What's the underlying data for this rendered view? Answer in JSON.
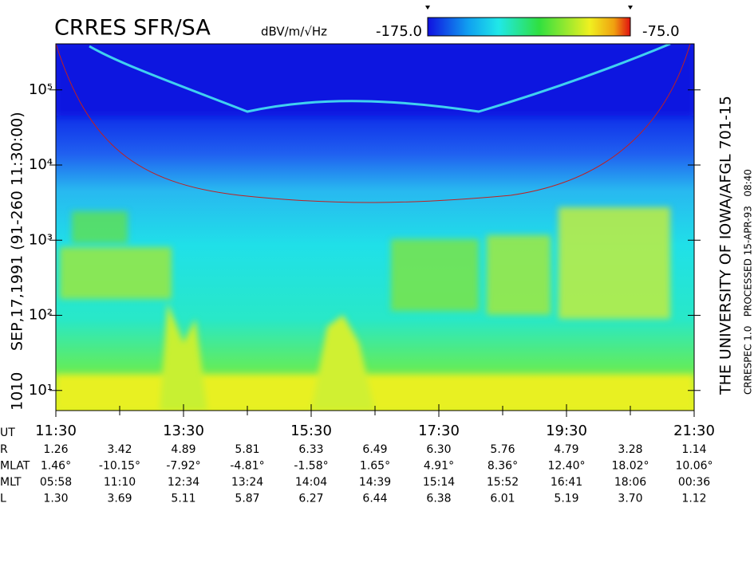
{
  "chart_data": {
    "type": "spectrogram",
    "title": "CRRES SFR/SA",
    "units": "dBV/m/√Hz",
    "colorbar": {
      "min": {
        "value": -175,
        "label": "-175.0"
      },
      "max": {
        "value": -75,
        "label": "-75.0"
      }
    },
    "left_label": "SEP,17,1991 (91-260 11:30:00)",
    "orbit_label": "1010",
    "right_label": "THE UNIVERSITY OF IOWA/AFGL 701-15",
    "processing_label": "CRRESPEC 1.0   PROCESSED 15-APR-93   08:40",
    "log_y": true,
    "ylim": [
      5.4,
      410000
    ],
    "yticks": [
      {
        "value": 10,
        "label": "10¹"
      },
      {
        "value": 100,
        "label": "10²"
      },
      {
        "value": 1000,
        "label": "10³"
      },
      {
        "value": 10000,
        "label": "10⁴"
      },
      {
        "value": 100000,
        "label": "10⁵"
      }
    ],
    "xlim": [
      11.5,
      21.5
    ],
    "xticks": [
      {
        "value": 11.5,
        "label": "11:30"
      },
      {
        "value": 13.5,
        "label": "13:30"
      },
      {
        "value": 15.5,
        "label": "15:30"
      },
      {
        "value": 17.5,
        "label": "17:30"
      },
      {
        "value": 19.5,
        "label": "19:30"
      },
      {
        "value": 21.5,
        "label": "21:30"
      }
    ],
    "xminorticks": [
      12.5,
      14.5,
      16.5,
      18.5,
      20.5
    ],
    "ephemeris": {
      "time_label": "UT",
      "rows": [
        {
          "name": "R",
          "values": [
            "1.26",
            "3.42",
            "4.89",
            "5.81",
            "6.33",
            "6.49",
            "6.30",
            "5.76",
            "4.79",
            "3.28",
            "1.14"
          ]
        },
        {
          "name": "MLAT",
          "values": [
            "1.46°",
            "-10.15°",
            "-7.92°",
            "-4.81°",
            "-1.58°",
            "1.65°",
            "4.91°",
            "8.36°",
            "12.40°",
            "18.02°",
            "10.06°"
          ]
        },
        {
          "name": "MLT",
          "values": [
            "05:58",
            "11:10",
            "12:34",
            "13:24",
            "14:04",
            "14:39",
            "15:14",
            "15:52",
            "16:41",
            "18:06",
            "00:36"
          ]
        },
        {
          "name": "L",
          "values": [
            "1.30",
            "3.69",
            "5.11",
            "5.87",
            "6.27",
            "6.44",
            "6.38",
            "6.01",
            "5.19",
            "3.70",
            "1.12"
          ]
        }
      ]
    }
  }
}
